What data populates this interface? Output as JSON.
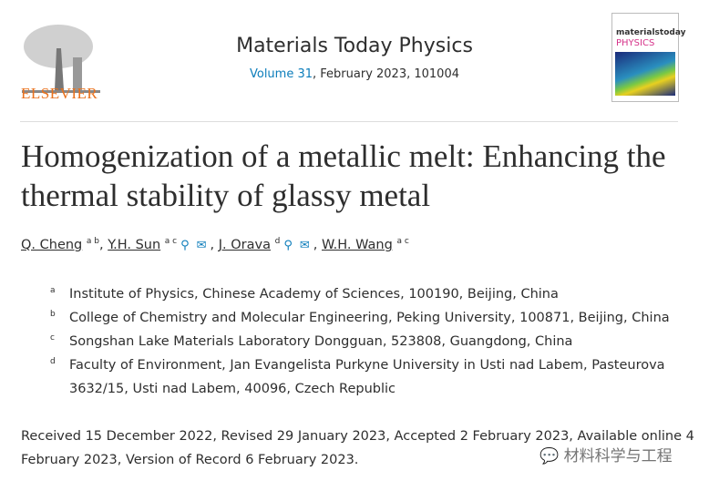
{
  "publisher": {
    "name": "ELSEVIER"
  },
  "journal": {
    "name": "Materials Today Physics",
    "volume_link": "Volume 31",
    "volume_rest": ", February 2023, 101004",
    "cover_text": {
      "line1": "materialstoday",
      "line2": "PHYSICS"
    }
  },
  "article": {
    "title": "Homogenization of a metallic melt: Enhancing the thermal stability of glassy metal"
  },
  "authors": [
    {
      "name": "Q. Cheng",
      "sup": "a b",
      "icons": false
    },
    {
      "name": "Y.H. Sun",
      "sup": "a c",
      "icons": true
    },
    {
      "name": "J. Orava",
      "sup": "d",
      "icons": true
    },
    {
      "name": "W.H. Wang",
      "sup": "a c",
      "icons": false
    }
  ],
  "affiliations": [
    {
      "label": "a",
      "text": "Institute of Physics, Chinese Academy of Sciences, 100190, Beijing, China"
    },
    {
      "label": "b",
      "text": "College of Chemistry and Molecular Engineering, Peking University, 100871, Beijing, China"
    },
    {
      "label": "c",
      "text": "Songshan Lake Materials Laboratory Dongguan, 523808, Guangdong, China"
    },
    {
      "label": "d",
      "text": "Faculty of Environment, Jan Evangelista Purkyne University in Usti nad Labem, Pasteurova 3632/15, Usti nad Labem, 40096, Czech Republic"
    }
  ],
  "dates": "Received 15 December 2022, Revised 29 January 2023, Accepted 2 February 2023, Available online 4 February 2023, Version of Record 6 February 2023.",
  "watermark": "材料科学与工程",
  "colors": {
    "link": "#0c7dbb",
    "elsevier": "#e9711c"
  }
}
